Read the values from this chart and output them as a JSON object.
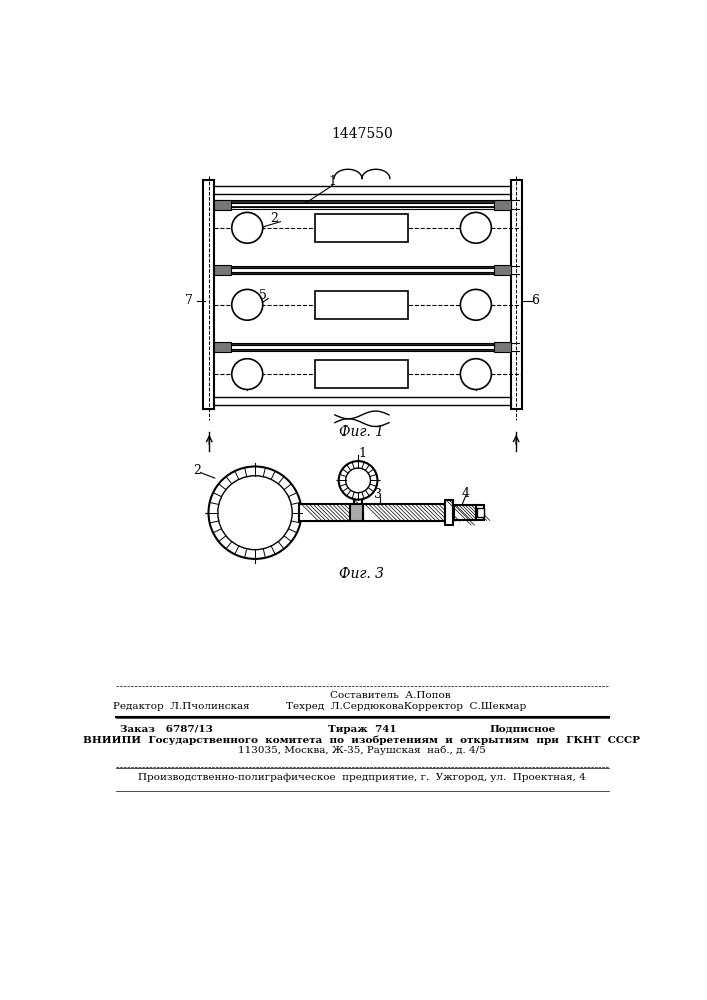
{
  "title": "1447550",
  "fig1_caption": "Фиг. 1",
  "fig3_caption": "Фиг. 3",
  "bg_color": "#ffffff",
  "footer_line1_left": "Редактор  Л.Пчолинская",
  "footer_line1_center": "Составитель  А.Попов",
  "footer_line2_center": "Техред  Л.СердюковаКорректор  С.Шекмар",
  "footer_zakaz": "Заказ   6787/13",
  "footer_tirazh": "Тираж  741",
  "footer_podpisnoe": "Подписное",
  "footer_vniiipi": "ВНИИПИ  Государственного  комитета  по  изобретениям  и  открытиям  при  ГКНТ  СССР",
  "footer_address": "113035, Москва, Ж-35, Раушская  наб., д. 4/5",
  "footer_proizv": "Производственно-полиграфическое  предприятие, г.  Ужгород, ул.  Проектная, 4"
}
